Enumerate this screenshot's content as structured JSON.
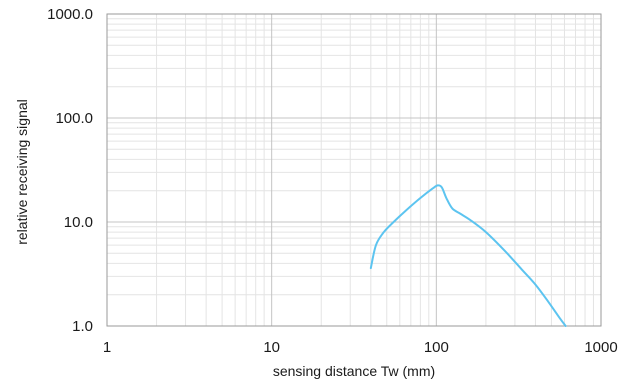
{
  "chart_data": {
    "type": "line",
    "xlabel": "sensing distance Tw (mm)",
    "ylabel": "relative receiving signal",
    "x_scale": "log",
    "y_scale": "log",
    "xlim": [
      1,
      1000
    ],
    "ylim": [
      1.0,
      1000.0
    ],
    "x_ticks": [
      1,
      10,
      100,
      1000
    ],
    "x_tick_labels": [
      "1",
      "10",
      "100",
      "1000"
    ],
    "y_ticks": [
      1,
      10,
      100,
      1000
    ],
    "y_tick_labels": [
      "1.0",
      "10.0",
      "100.0",
      "1000.0"
    ],
    "grid": true,
    "legend": false,
    "series": [
      {
        "color": "#5cc4f0",
        "x": [
          40,
          43,
          48,
          55,
          65,
          80,
          95,
          102,
          108,
          115,
          125,
          140,
          160,
          200,
          260,
          330,
          400,
          480,
          560,
          610
        ],
        "y": [
          3.6,
          6.0,
          8.0,
          10.0,
          12.8,
          17.0,
          21.0,
          22.5,
          21.5,
          17.0,
          13.5,
          12.0,
          10.5,
          8.0,
          5.3,
          3.5,
          2.5,
          1.7,
          1.2,
          1.0
        ]
      }
    ]
  }
}
